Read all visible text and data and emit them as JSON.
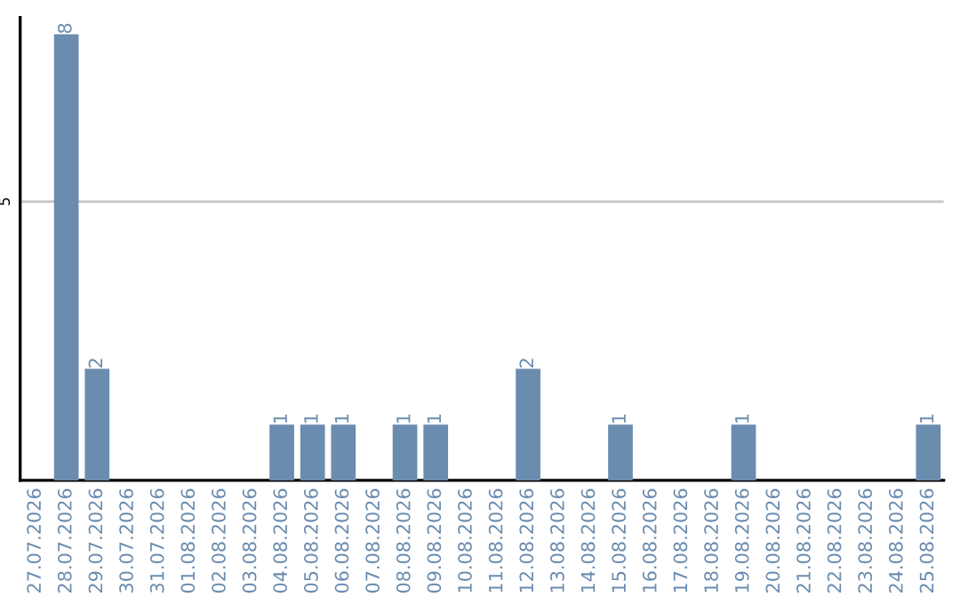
{
  "chart_data": {
    "type": "bar",
    "categories": [
      "27.07.2026",
      "28.07.2026",
      "29.07.2026",
      "30.07.2026",
      "31.07.2026",
      "01.08.2026",
      "02.08.2026",
      "03.08.2026",
      "04.08.2026",
      "05.08.2026",
      "06.08.2026",
      "07.08.2026",
      "08.08.2026",
      "09.08.2026",
      "10.08.2026",
      "11.08.2026",
      "12.08.2026",
      "13.08.2026",
      "14.08.2026",
      "15.08.2026",
      "16.08.2026",
      "17.08.2026",
      "18.08.2026",
      "19.08.2026",
      "20.08.2026",
      "21.08.2026",
      "22.08.2026",
      "23.08.2026",
      "24.08.2026",
      "25.08.2026"
    ],
    "values": [
      0,
      8,
      2,
      0,
      0,
      0,
      0,
      0,
      1,
      1,
      1,
      0,
      1,
      1,
      0,
      0,
      2,
      0,
      0,
      1,
      0,
      0,
      0,
      1,
      0,
      0,
      0,
      0,
      0,
      1
    ],
    "value_labels": [
      null,
      "8",
      "2",
      null,
      null,
      null,
      null,
      null,
      "1",
      "1",
      "1",
      null,
      "1",
      "1",
      null,
      null,
      "2",
      null,
      null,
      "1",
      null,
      null,
      null,
      "1",
      null,
      null,
      null,
      null,
      null,
      "1"
    ],
    "color": "#6a8caf",
    "ylim": [
      0,
      8.3
    ],
    "yticks": [
      5
    ],
    "grid": "y",
    "legend": false
  }
}
